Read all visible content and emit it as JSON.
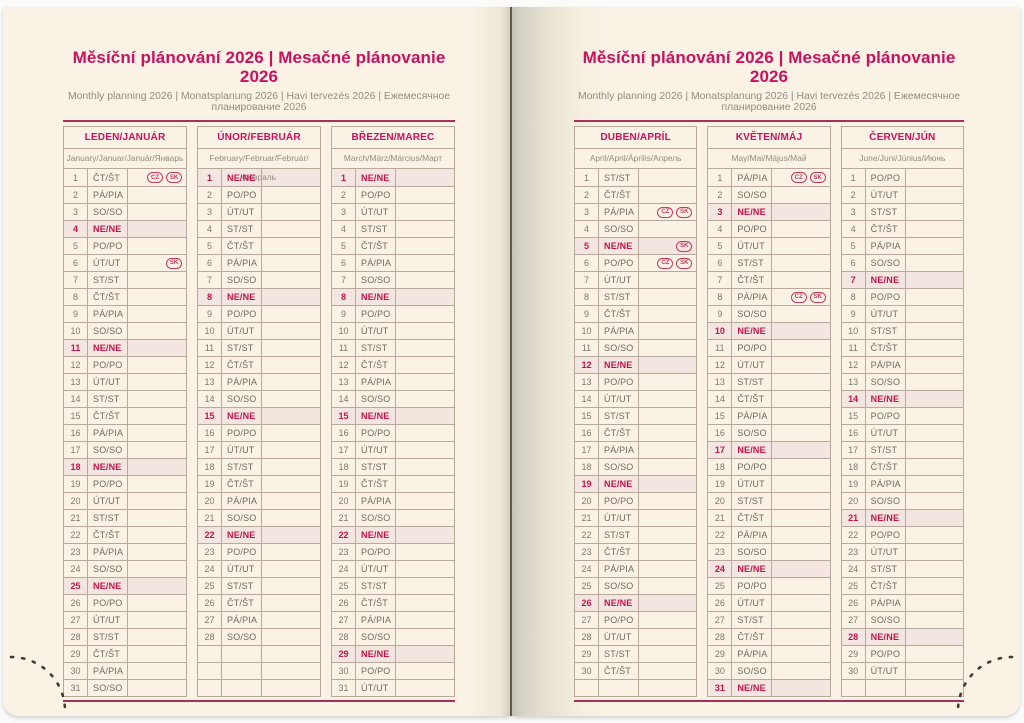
{
  "header": {
    "title": "Měsíční plánování 2026 | Mesačné plánovanie 2026",
    "subtitle": "Monthly planning 2026 | Monatsplanung 2026 | Havi tervezés 2026 | Ежемесячное планирование 2026"
  },
  "colors": {
    "accent": "#c9115f",
    "rule": "#a8305c",
    "sunday_text": "#c2154b",
    "sunday_background": "#f3e6e1",
    "page_background": "#faf3e5",
    "table_border": "#b9a89c",
    "holiday_badge": "#c43a60"
  },
  "holiday_badge_labels": [
    "CZ",
    "SK"
  ],
  "pages": [
    {
      "side": "left",
      "months": [
        {
          "name": "LEDEN/JANUÁR",
          "languages": "January/Januar/Január/Январь",
          "empty_rows": 0,
          "days": [
            {
              "n": 1,
              "d": "ČT/ŠT",
              "b": [
                "CZ",
                "SK"
              ]
            },
            {
              "n": 2,
              "d": "PÁ/PIA"
            },
            {
              "n": 3,
              "d": "SO/SO"
            },
            {
              "n": 4,
              "d": "NE/NE",
              "s": true
            },
            {
              "n": 5,
              "d": "PO/PO"
            },
            {
              "n": 6,
              "d": "ÚT/UT",
              "b": [
                "SK"
              ]
            },
            {
              "n": 7,
              "d": "ST/ST"
            },
            {
              "n": 8,
              "d": "ČT/ŠT"
            },
            {
              "n": 9,
              "d": "PÁ/PIA"
            },
            {
              "n": 10,
              "d": "SO/SO"
            },
            {
              "n": 11,
              "d": "NE/NE",
              "s": true
            },
            {
              "n": 12,
              "d": "PO/PO"
            },
            {
              "n": 13,
              "d": "ÚT/UT"
            },
            {
              "n": 14,
              "d": "ST/ST"
            },
            {
              "n": 15,
              "d": "ČT/ŠT"
            },
            {
              "n": 16,
              "d": "PÁ/PIA"
            },
            {
              "n": 17,
              "d": "SO/SO"
            },
            {
              "n": 18,
              "d": "NE/NE",
              "s": true
            },
            {
              "n": 19,
              "d": "PO/PO"
            },
            {
              "n": 20,
              "d": "ÚT/UT"
            },
            {
              "n": 21,
              "d": "ST/ST"
            },
            {
              "n": 22,
              "d": "ČT/ŠT"
            },
            {
              "n": 23,
              "d": "PÁ/PIA"
            },
            {
              "n": 24,
              "d": "SO/SO"
            },
            {
              "n": 25,
              "d": "NE/NE",
              "s": true
            },
            {
              "n": 26,
              "d": "PO/PO"
            },
            {
              "n": 27,
              "d": "ÚT/UT"
            },
            {
              "n": 28,
              "d": "ST/ST"
            },
            {
              "n": 29,
              "d": "ČT/ŠT"
            },
            {
              "n": 30,
              "d": "PÁ/PIA"
            },
            {
              "n": 31,
              "d": "SO/SO"
            }
          ]
        },
        {
          "name": "ÚNOR/FEBRUÁR",
          "languages": "February/Februar/Február/Февраль",
          "empty_rows": 3,
          "days": [
            {
              "n": 1,
              "d": "NE/NE",
              "s": true
            },
            {
              "n": 2,
              "d": "PO/PO"
            },
            {
              "n": 3,
              "d": "ÚT/UT"
            },
            {
              "n": 4,
              "d": "ST/ST"
            },
            {
              "n": 5,
              "d": "ČT/ŠT"
            },
            {
              "n": 6,
              "d": "PÁ/PIA"
            },
            {
              "n": 7,
              "d": "SO/SO"
            },
            {
              "n": 8,
              "d": "NE/NE",
              "s": true
            },
            {
              "n": 9,
              "d": "PO/PO"
            },
            {
              "n": 10,
              "d": "ÚT/UT"
            },
            {
              "n": 11,
              "d": "ST/ST"
            },
            {
              "n": 12,
              "d": "ČT/ŠT"
            },
            {
              "n": 13,
              "d": "PÁ/PIA"
            },
            {
              "n": 14,
              "d": "SO/SO"
            },
            {
              "n": 15,
              "d": "NE/NE",
              "s": true
            },
            {
              "n": 16,
              "d": "PO/PO"
            },
            {
              "n": 17,
              "d": "ÚT/UT"
            },
            {
              "n": 18,
              "d": "ST/ST"
            },
            {
              "n": 19,
              "d": "ČT/ŠT"
            },
            {
              "n": 20,
              "d": "PÁ/PIA"
            },
            {
              "n": 21,
              "d": "SO/SO"
            },
            {
              "n": 22,
              "d": "NE/NE",
              "s": true
            },
            {
              "n": 23,
              "d": "PO/PO"
            },
            {
              "n": 24,
              "d": "ÚT/UT"
            },
            {
              "n": 25,
              "d": "ST/ST"
            },
            {
              "n": 26,
              "d": "ČT/ŠT"
            },
            {
              "n": 27,
              "d": "PÁ/PIA"
            },
            {
              "n": 28,
              "d": "SO/SO"
            }
          ]
        },
        {
          "name": "BŘEZEN/MAREC",
          "languages": "March/März/Március/Март",
          "empty_rows": 0,
          "days": [
            {
              "n": 1,
              "d": "NE/NE",
              "s": true
            },
            {
              "n": 2,
              "d": "PO/PO"
            },
            {
              "n": 3,
              "d": "ÚT/UT"
            },
            {
              "n": 4,
              "d": "ST/ST"
            },
            {
              "n": 5,
              "d": "ČT/ŠT"
            },
            {
              "n": 6,
              "d": "PÁ/PIA"
            },
            {
              "n": 7,
              "d": "SO/SO"
            },
            {
              "n": 8,
              "d": "NE/NE",
              "s": true
            },
            {
              "n": 9,
              "d": "PO/PO"
            },
            {
              "n": 10,
              "d": "ÚT/UT"
            },
            {
              "n": 11,
              "d": "ST/ST"
            },
            {
              "n": 12,
              "d": "ČT/ŠT"
            },
            {
              "n": 13,
              "d": "PÁ/PIA"
            },
            {
              "n": 14,
              "d": "SO/SO"
            },
            {
              "n": 15,
              "d": "NE/NE",
              "s": true
            },
            {
              "n": 16,
              "d": "PO/PO"
            },
            {
              "n": 17,
              "d": "ÚT/UT"
            },
            {
              "n": 18,
              "d": "ST/ST"
            },
            {
              "n": 19,
              "d": "ČT/ŠT"
            },
            {
              "n": 20,
              "d": "PÁ/PIA"
            },
            {
              "n": 21,
              "d": "SO/SO"
            },
            {
              "n": 22,
              "d": "NE/NE",
              "s": true
            },
            {
              "n": 23,
              "d": "PO/PO"
            },
            {
              "n": 24,
              "d": "ÚT/UT"
            },
            {
              "n": 25,
              "d": "ST/ST"
            },
            {
              "n": 26,
              "d": "ČT/ŠT"
            },
            {
              "n": 27,
              "d": "PÁ/PIA"
            },
            {
              "n": 28,
              "d": "SO/SO"
            },
            {
              "n": 29,
              "d": "NE/NE",
              "s": true
            },
            {
              "n": 30,
              "d": "PO/PO"
            },
            {
              "n": 31,
              "d": "ÚT/UT"
            }
          ]
        }
      ]
    },
    {
      "side": "right",
      "months": [
        {
          "name": "DUBEN/APRÍL",
          "languages": "April/April/Április/Апрель",
          "empty_rows": 1,
          "days": [
            {
              "n": 1,
              "d": "ST/ST"
            },
            {
              "n": 2,
              "d": "ČT/ŠT"
            },
            {
              "n": 3,
              "d": "PÁ/PIA",
              "b": [
                "CZ",
                "SK"
              ]
            },
            {
              "n": 4,
              "d": "SO/SO"
            },
            {
              "n": 5,
              "d": "NE/NE",
              "s": true,
              "b": [
                "SK"
              ]
            },
            {
              "n": 6,
              "d": "PO/PO",
              "b": [
                "CZ",
                "SK"
              ]
            },
            {
              "n": 7,
              "d": "ÚT/UT"
            },
            {
              "n": 8,
              "d": "ST/ST"
            },
            {
              "n": 9,
              "d": "ČT/ŠT"
            },
            {
              "n": 10,
              "d": "PÁ/PIA"
            },
            {
              "n": 11,
              "d": "SO/SO"
            },
            {
              "n": 12,
              "d": "NE/NE",
              "s": true
            },
            {
              "n": 13,
              "d": "PO/PO"
            },
            {
              "n": 14,
              "d": "ÚT/UT"
            },
            {
              "n": 15,
              "d": "ST/ST"
            },
            {
              "n": 16,
              "d": "ČT/ŠT"
            },
            {
              "n": 17,
              "d": "PÁ/PIA"
            },
            {
              "n": 18,
              "d": "SO/SO"
            },
            {
              "n": 19,
              "d": "NE/NE",
              "s": true
            },
            {
              "n": 20,
              "d": "PO/PO"
            },
            {
              "n": 21,
              "d": "ÚT/UT"
            },
            {
              "n": 22,
              "d": "ST/ST"
            },
            {
              "n": 23,
              "d": "ČT/ŠT"
            },
            {
              "n": 24,
              "d": "PÁ/PIA"
            },
            {
              "n": 25,
              "d": "SO/SO"
            },
            {
              "n": 26,
              "d": "NE/NE",
              "s": true
            },
            {
              "n": 27,
              "d": "PO/PO"
            },
            {
              "n": 28,
              "d": "ÚT/UT"
            },
            {
              "n": 29,
              "d": "ST/ST"
            },
            {
              "n": 30,
              "d": "ČT/ŠT"
            }
          ]
        },
        {
          "name": "KVĚTEN/MÁJ",
          "languages": "May/Mai/Május/Май",
          "empty_rows": 0,
          "days": [
            {
              "n": 1,
              "d": "PÁ/PIA",
              "b": [
                "CZ",
                "SK"
              ]
            },
            {
              "n": 2,
              "d": "SO/SO"
            },
            {
              "n": 3,
              "d": "NE/NE",
              "s": true
            },
            {
              "n": 4,
              "d": "PO/PO"
            },
            {
              "n": 5,
              "d": "ÚT/UT"
            },
            {
              "n": 6,
              "d": "ST/ST"
            },
            {
              "n": 7,
              "d": "ČT/ŠT"
            },
            {
              "n": 8,
              "d": "PÁ/PIA",
              "b": [
                "CZ",
                "SK"
              ]
            },
            {
              "n": 9,
              "d": "SO/SO"
            },
            {
              "n": 10,
              "d": "NE/NE",
              "s": true
            },
            {
              "n": 11,
              "d": "PO/PO"
            },
            {
              "n": 12,
              "d": "ÚT/UT"
            },
            {
              "n": 13,
              "d": "ST/ST"
            },
            {
              "n": 14,
              "d": "ČT/ŠT"
            },
            {
              "n": 15,
              "d": "PÁ/PIA"
            },
            {
              "n": 16,
              "d": "SO/SO"
            },
            {
              "n": 17,
              "d": "NE/NE",
              "s": true
            },
            {
              "n": 18,
              "d": "PO/PO"
            },
            {
              "n": 19,
              "d": "ÚT/UT"
            },
            {
              "n": 20,
              "d": "ST/ST"
            },
            {
              "n": 21,
              "d": "ČT/ŠT"
            },
            {
              "n": 22,
              "d": "PÁ/PIA"
            },
            {
              "n": 23,
              "d": "SO/SO"
            },
            {
              "n": 24,
              "d": "NE/NE",
              "s": true
            },
            {
              "n": 25,
              "d": "PO/PO"
            },
            {
              "n": 26,
              "d": "ÚT/UT"
            },
            {
              "n": 27,
              "d": "ST/ST"
            },
            {
              "n": 28,
              "d": "ČT/ŠT"
            },
            {
              "n": 29,
              "d": "PÁ/PIA"
            },
            {
              "n": 30,
              "d": "SO/SO"
            },
            {
              "n": 31,
              "d": "NE/NE",
              "s": true
            }
          ]
        },
        {
          "name": "ČERVEN/JÚN",
          "languages": "June/Juni/Június/Июнь",
          "empty_rows": 1,
          "days": [
            {
              "n": 1,
              "d": "PO/PO"
            },
            {
              "n": 2,
              "d": "ÚT/UT"
            },
            {
              "n": 3,
              "d": "ST/ST"
            },
            {
              "n": 4,
              "d": "ČT/ŠT"
            },
            {
              "n": 5,
              "d": "PÁ/PIA"
            },
            {
              "n": 6,
              "d": "SO/SO"
            },
            {
              "n": 7,
              "d": "NE/NE",
              "s": true
            },
            {
              "n": 8,
              "d": "PO/PO"
            },
            {
              "n": 9,
              "d": "ÚT/UT"
            },
            {
              "n": 10,
              "d": "ST/ST"
            },
            {
              "n": 11,
              "d": "ČT/ŠT"
            },
            {
              "n": 12,
              "d": "PÁ/PIA"
            },
            {
              "n": 13,
              "d": "SO/SO"
            },
            {
              "n": 14,
              "d": "NE/NE",
              "s": true
            },
            {
              "n": 15,
              "d": "PO/PO"
            },
            {
              "n": 16,
              "d": "ÚT/UT"
            },
            {
              "n": 17,
              "d": "ST/ST"
            },
            {
              "n": 18,
              "d": "ČT/ŠT"
            },
            {
              "n": 19,
              "d": "PÁ/PIA"
            },
            {
              "n": 20,
              "d": "SO/SO"
            },
            {
              "n": 21,
              "d": "NE/NE",
              "s": true
            },
            {
              "n": 22,
              "d": "PO/PO"
            },
            {
              "n": 23,
              "d": "ÚT/UT"
            },
            {
              "n": 24,
              "d": "ST/ST"
            },
            {
              "n": 25,
              "d": "ČT/ŠT"
            },
            {
              "n": 26,
              "d": "PÁ/PIA"
            },
            {
              "n": 27,
              "d": "SO/SO"
            },
            {
              "n": 28,
              "d": "NE/NE",
              "s": true
            },
            {
              "n": 29,
              "d": "PO/PO"
            },
            {
              "n": 30,
              "d": "ÚT/UT"
            }
          ]
        }
      ]
    }
  ]
}
